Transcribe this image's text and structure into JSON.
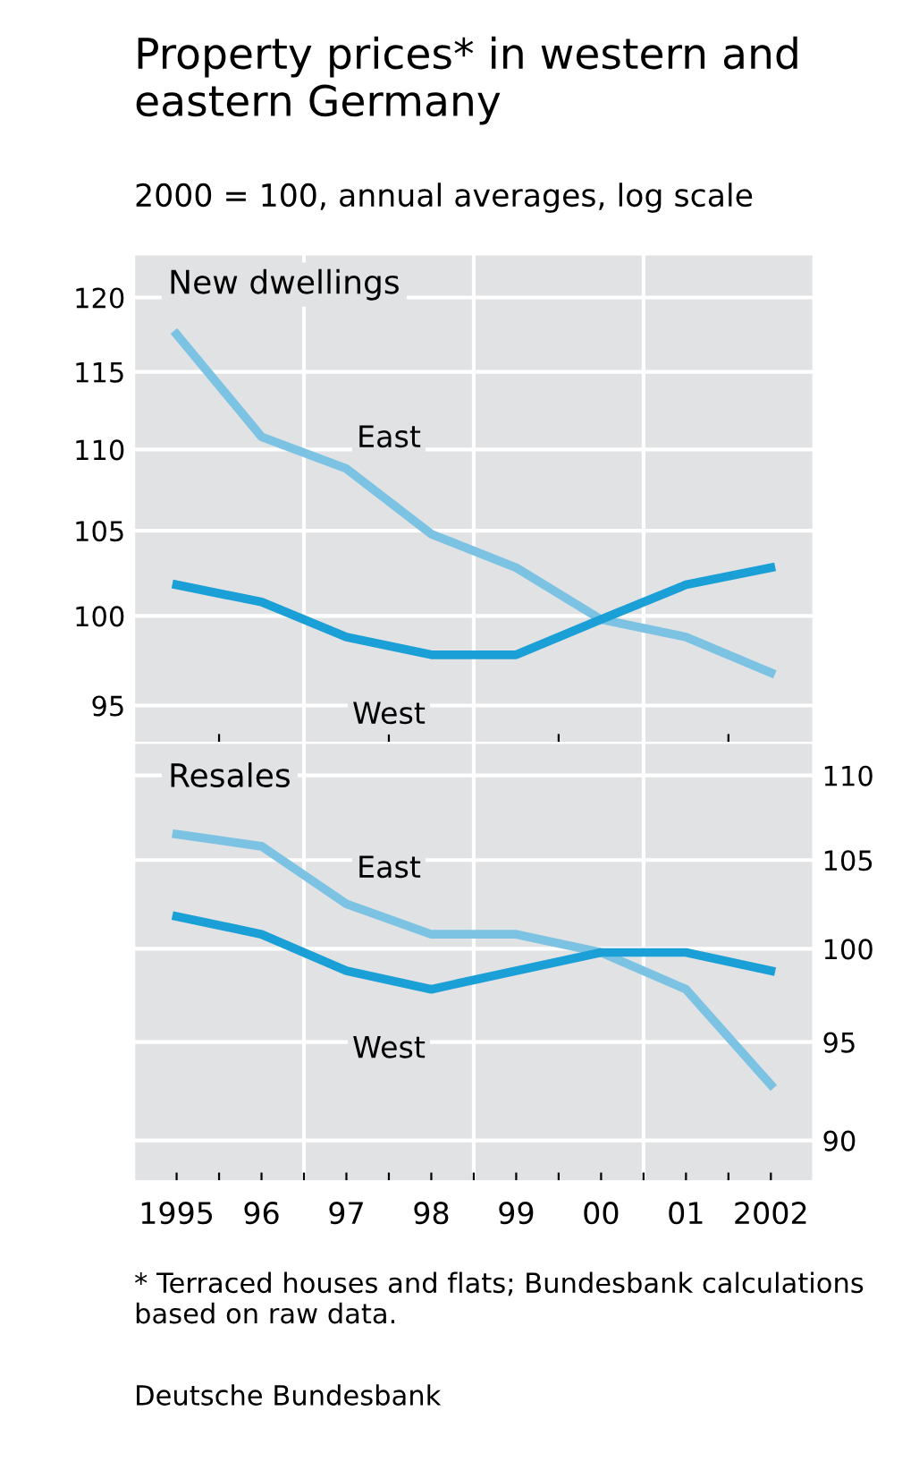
{
  "chart_data": [
    {
      "type": "line",
      "title": "Property prices* in western and eastern Germany",
      "subtitle": "2000 = 100, annual averages, log scale",
      "annotations": [
        "New dwellings"
      ],
      "x": [
        1995,
        1996,
        1997,
        1998,
        1999,
        2000,
        2001,
        2002
      ],
      "series": [
        {
          "name": "East",
          "color": "#7cc3e3",
          "values": [
            117.5,
            110.8,
            108.8,
            104.8,
            102.8,
            99.8,
            98.8,
            96.8
          ]
        },
        {
          "name": "West",
          "color": "#1a9fd6",
          "values": [
            101.8,
            100.8,
            98.8,
            97.8,
            97.8,
            99.8,
            101.8,
            102.8
          ]
        }
      ],
      "log": true,
      "xlim": [
        1994.5,
        2002.5
      ],
      "ylim": [
        93,
        123
      ],
      "yticks": [
        95,
        100,
        105,
        110,
        115,
        120
      ],
      "xticks": [
        {
          "value": 1995.5,
          "label": null
        },
        {
          "value": 1996.5,
          "label": null
        },
        {
          "value": 1997.5,
          "label": null
        },
        {
          "value": 1998.5,
          "label": null
        },
        {
          "value": 1999.5,
          "label": null
        },
        {
          "value": 2000.5,
          "label": null
        },
        {
          "value": 2001.5,
          "label": null
        }
      ],
      "ref_lines": [
        {
          "axis": "x",
          "value": 1996.5,
          "color": "#ffffff"
        },
        {
          "axis": "x",
          "value": 1998.5,
          "color": "#ffffff"
        },
        {
          "axis": "x",
          "value": 2000.5,
          "color": "#ffffff"
        }
      ],
      "grid": "y",
      "tick_labels": "y",
      "legend": false,
      "line_style": "solid",
      "marker": "none"
    },
    {
      "type": "line",
      "annotations": [
        "Resales",
        "* Terraced houses and flats; Bundesbank calculations based on raw data.",
        "Deutsche Bundesbank"
      ],
      "x": [
        1995,
        1996,
        1997,
        1998,
        1999,
        2000,
        2001,
        2002
      ],
      "series": [
        {
          "name": "East",
          "color": "#7cc3e3",
          "axis": "y2",
          "values": [
            106.5,
            105.8,
            102.5,
            100.8,
            100.8,
            99.8,
            97.8,
            92.8
          ]
        },
        {
          "name": "West",
          "color": "#1a9fd6",
          "axis": "y2",
          "values": [
            101.8,
            100.8,
            98.8,
            97.8,
            98.8,
            99.8,
            99.8,
            98.8
          ]
        }
      ],
      "log": "y2",
      "xlim": [
        1994.5,
        2002.5
      ],
      "y2lim": [
        88,
        112
      ],
      "y2ticks": [
        90,
        95,
        100,
        105,
        110
      ],
      "xticks": [
        {
          "value": 1995,
          "label": "1995"
        },
        {
          "value": 1995.5,
          "label": null
        },
        {
          "value": 1996,
          "label": "96"
        },
        {
          "value": 1996.5,
          "label": null
        },
        {
          "value": 1997,
          "label": "97"
        },
        {
          "value": 1997.5,
          "label": null
        },
        {
          "value": 1998,
          "label": "98"
        },
        {
          "value": 1998.5,
          "label": null
        },
        {
          "value": 1999,
          "label": "99"
        },
        {
          "value": 1999.5,
          "label": null
        },
        {
          "value": 2000,
          "label": "00"
        },
        {
          "value": 2000.5,
          "label": null
        },
        {
          "value": 2001,
          "label": "01"
        },
        {
          "value": 2001.5,
          "label": null
        },
        {
          "value": 2002,
          "label": "2002"
        }
      ],
      "ref_lines": [
        {
          "axis": "x",
          "value": 1996.5,
          "color": "#ffffff"
        },
        {
          "axis": "x",
          "value": 1998.5,
          "color": "#ffffff"
        },
        {
          "axis": "x",
          "value": 2000.5,
          "color": "#ffffff"
        }
      ],
      "grid": "y",
      "legend": false,
      "line_style": "solid",
      "marker": "none"
    }
  ]
}
